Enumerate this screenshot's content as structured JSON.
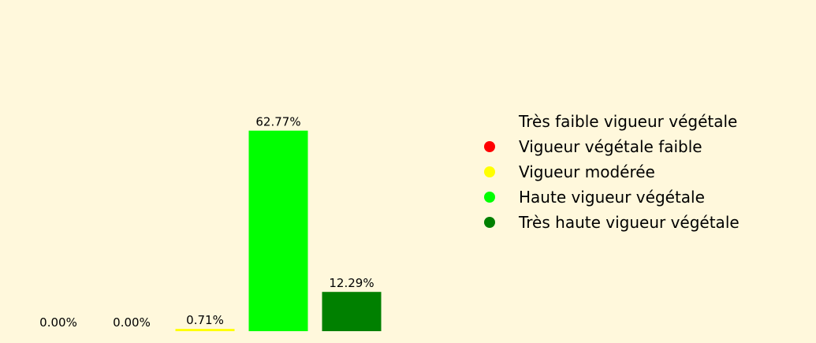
{
  "chart_data": {
    "type": "bar",
    "categories": [
      "Très faible vigueur végétale",
      "Vigueur végétale faible",
      "Vigueur modérée",
      "Haute vigueur végétale",
      "Très haute vigueur végétale"
    ],
    "values": [
      0.0,
      0.0,
      0.71,
      62.77,
      12.29
    ],
    "value_labels": [
      "0.00%",
      "0.00%",
      "0.71%",
      "62.77%",
      "12.29%"
    ],
    "colors": [
      "#fff8dc",
      "#ff0000",
      "#ffff00",
      "#00ff00",
      "#008000"
    ],
    "ylim": [
      0,
      65.9
    ],
    "grid": false,
    "axes_visible": false,
    "legend_position": "right",
    "background": "#fff8dc"
  }
}
